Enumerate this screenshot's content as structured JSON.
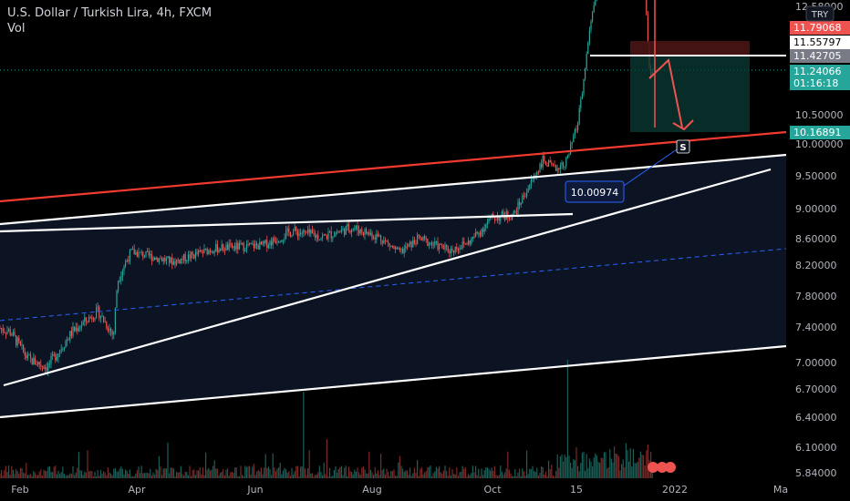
{
  "header": {
    "symbol": "U.S. Dollar / Turkish Lira, 4h, FXCM",
    "volume_label": "Vol"
  },
  "currency_button": "TRY",
  "colors": {
    "background": "#000000",
    "channel_fill": "#0c1424",
    "up": "#26a69a",
    "down": "#ef5350",
    "resistance": "#f23b2e",
    "trendline": "#ffffff",
    "midline": "#2962ff",
    "annotation": "#2962ff"
  },
  "chart_data": {
    "type": "candlestick",
    "title": "U.S. Dollar / Turkish Lira, 4h, FXCM",
    "ylabel": "",
    "xlabel": "",
    "ylim": [
      5.84,
      12.58
    ],
    "y_ticks": [
      "12.58000",
      "10.50000",
      "10.00000",
      "9.50000",
      "9.00000",
      "8.60000",
      "8.20000",
      "7.80000",
      "7.40000",
      "7.00000",
      "6.70000",
      "6.40000",
      "6.10000",
      "5.84000"
    ],
    "x_ticks": [
      "Feb",
      "Apr",
      "Jun",
      "Aug",
      "Oct",
      "15",
      "2022",
      "Ma"
    ],
    "price_labels": [
      {
        "label": "11.79068",
        "kind": "stop",
        "color": "#ef5350"
      },
      {
        "label": "11.55797",
        "kind": "level",
        "color": "#ffffff"
      },
      {
        "label": "11.42705",
        "kind": "entry",
        "color": "#787b86"
      },
      {
        "label": "11.24066",
        "kind": "last",
        "color": "#26a69a"
      },
      {
        "label": "01:16:18",
        "kind": "countdown",
        "color": "#26a69a"
      },
      {
        "label": "10.16891",
        "kind": "target",
        "color": "#26a69a"
      }
    ],
    "annotation": {
      "text": "10.00974"
    },
    "marker": {
      "text": "S"
    },
    "price_path": [
      {
        "t": "Jan 10",
        "close": 7.46
      },
      {
        "t": "Jan 25",
        "close": 7.35
      },
      {
        "t": "Feb 5",
        "close": 7.04
      },
      {
        "t": "Feb 15",
        "close": 6.95
      },
      {
        "t": "Feb 28",
        "close": 7.35
      },
      {
        "t": "Mar 12",
        "close": 7.6
      },
      {
        "t": "Mar 20",
        "close": 7.3
      },
      {
        "t": "Mar 22",
        "close": 8.0
      },
      {
        "t": "Mar 29",
        "close": 8.4
      },
      {
        "t": "Apr 20",
        "close": 8.25
      },
      {
        "t": "May 10",
        "close": 8.45
      },
      {
        "t": "Jun 5",
        "close": 8.5
      },
      {
        "t": "Jun 20",
        "close": 8.7
      },
      {
        "t": "Jul 5",
        "close": 8.62
      },
      {
        "t": "Jul 20",
        "close": 8.75
      },
      {
        "t": "Aug 5",
        "close": 8.62
      },
      {
        "t": "Aug 15",
        "close": 8.38
      },
      {
        "t": "Aug 25",
        "close": 8.6
      },
      {
        "t": "Sep 10",
        "close": 8.42
      },
      {
        "t": "Sep 20",
        "close": 8.55
      },
      {
        "t": "Oct 1",
        "close": 8.88
      },
      {
        "t": "Oct 12",
        "close": 8.92
      },
      {
        "t": "Oct 20",
        "close": 9.35
      },
      {
        "t": "Oct 27",
        "close": 9.75
      },
      {
        "t": "Nov 3",
        "close": 9.6
      },
      {
        "t": "Nov 10",
        "close": 9.75
      },
      {
        "t": "Nov 15",
        "close": 10.3
      },
      {
        "t": "Nov 18",
        "close": 11.0
      },
      {
        "t": "Nov 20",
        "close": 11.7
      },
      {
        "t": "Nov 23",
        "close": 12.5
      },
      {
        "t": "Nov 25",
        "close": 12.9
      },
      {
        "t": "Dec 5",
        "close": 13.2
      },
      {
        "t": "Dec 15",
        "close": 14.5
      },
      {
        "t": "Dec 20",
        "close": 11.3
      },
      {
        "t": "Dec 22",
        "close": 11.24
      }
    ]
  }
}
